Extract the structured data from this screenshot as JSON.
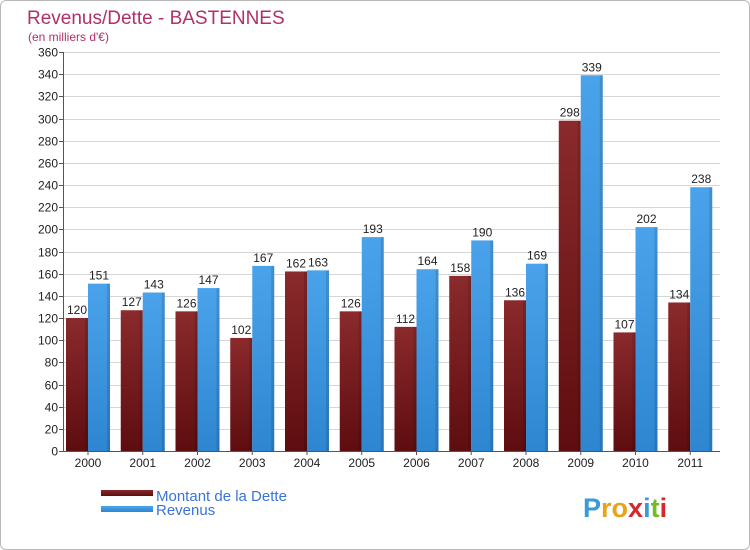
{
  "chart_data": {
    "type": "bar",
    "title": "Revenus/Dette - BASTENNES",
    "subtitle": "(en milliers d'€)",
    "xlabel": "",
    "ylabel": "",
    "ylim": [
      0,
      360
    ],
    "ytick_step": 20,
    "grid": true,
    "categories": [
      "2000",
      "2001",
      "2002",
      "2003",
      "2004",
      "2005",
      "2006",
      "2007",
      "2008",
      "2009",
      "2010",
      "2011"
    ],
    "series": [
      {
        "name": "Montant de la Dette",
        "color": "#7a1c1e",
        "values": [
          120,
          127,
          126,
          102,
          162,
          126,
          112,
          158,
          136,
          298,
          107,
          134
        ]
      },
      {
        "name": "Revenus",
        "color": "#3d97e0",
        "values": [
          151,
          143,
          147,
          167,
          163,
          193,
          164,
          190,
          169,
          339,
          202,
          238
        ]
      }
    ],
    "legend_position": "bottom-left"
  },
  "brand": {
    "logo_letters": [
      "P",
      "r",
      "o",
      "x",
      "i",
      "t",
      "i"
    ],
    "logo_colors": [
      "#3a9ad9",
      "#e8a317",
      "#e8a317",
      "#d8262f",
      "#3a9ad9",
      "#78b928",
      "#d8262f"
    ]
  }
}
